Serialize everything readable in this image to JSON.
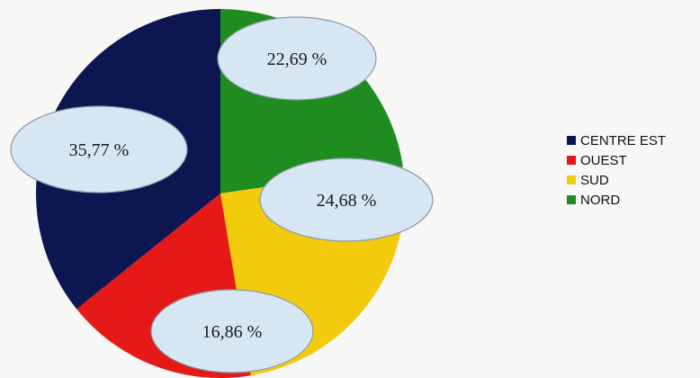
{
  "chart_data": {
    "type": "pie",
    "slices": [
      {
        "name": "NORD",
        "value": 22.69,
        "label": "22,69 %",
        "color": "#1f8c1f"
      },
      {
        "name": "SUD",
        "value": 24.68,
        "label": "24,68 %",
        "color": "#f2cc0c"
      },
      {
        "name": "OUEST",
        "value": 16.86,
        "label": "16,86 %",
        "color": "#e61919"
      },
      {
        "name": "CENTRE EST",
        "value": 35.77,
        "label": "35,77 %",
        "color": "#0d1650"
      }
    ],
    "legend": {
      "placement": "right",
      "items": [
        {
          "label": "CENTRE EST",
          "color": "#0d1650"
        },
        {
          "label": "OUEST",
          "color": "#e61919"
        },
        {
          "label": "SUD",
          "color": "#f2cc0c"
        },
        {
          "label": "NORD",
          "color": "#1f8c1f"
        }
      ]
    },
    "label_style": {
      "bubble_fill": "#d6e6f2",
      "bubble_stroke": "#8a9aa8"
    }
  }
}
